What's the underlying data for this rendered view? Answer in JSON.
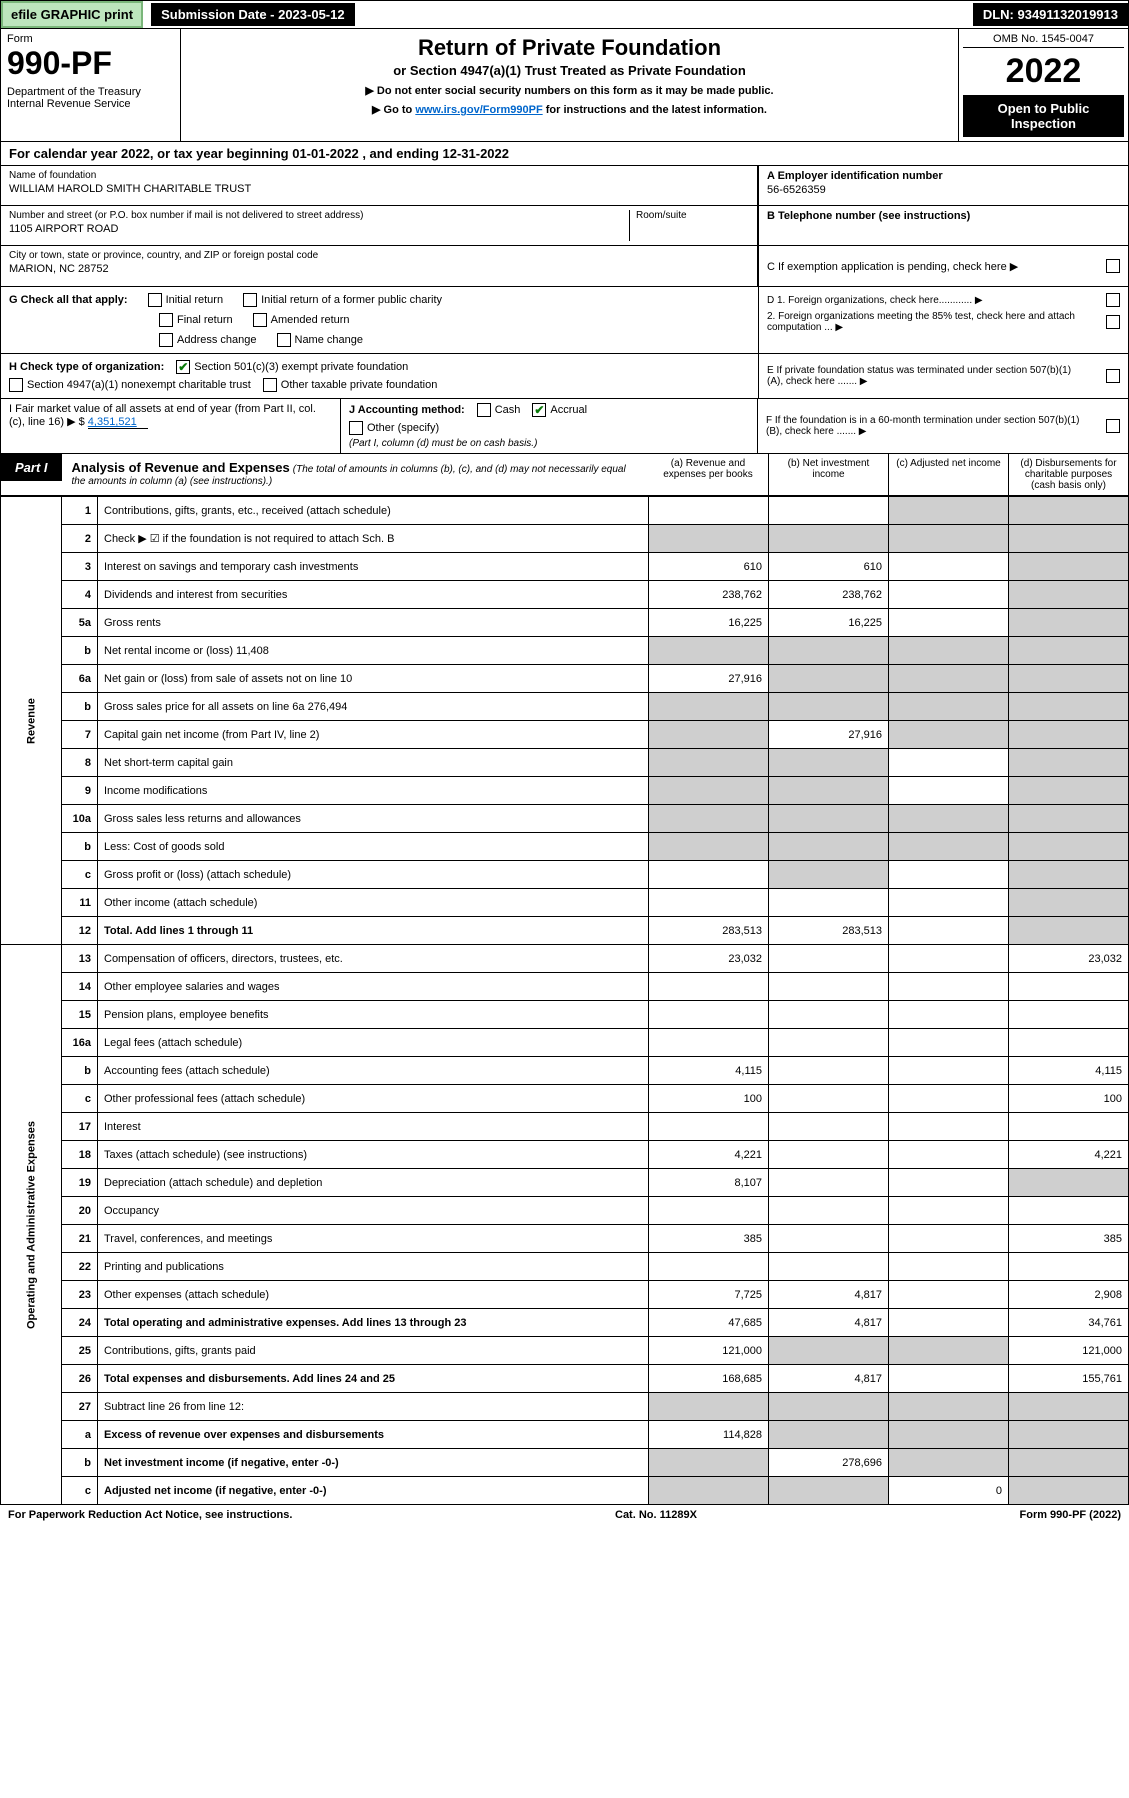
{
  "top": {
    "efile": "efile GRAPHIC print",
    "submission": "Submission Date - 2023-05-12",
    "dln": "DLN: 93491132019913"
  },
  "header": {
    "form_label": "Form",
    "form_num": "990-PF",
    "dept": "Department of the Treasury\nInternal Revenue Service",
    "title": "Return of Private Foundation",
    "subtitle": "or Section 4947(a)(1) Trust Treated as Private Foundation",
    "instr1": "▶ Do not enter social security numbers on this form as it may be made public.",
    "instr2_pre": "▶ Go to ",
    "instr2_link": "www.irs.gov/Form990PF",
    "instr2_post": " for instructions and the latest information.",
    "omb": "OMB No. 1545-0047",
    "year": "2022",
    "open": "Open to Public Inspection"
  },
  "cal_year": "For calendar year 2022, or tax year beginning 01-01-2022                          , and ending 12-31-2022",
  "info": {
    "name_lbl": "Name of foundation",
    "name": "WILLIAM HAROLD SMITH CHARITABLE TRUST",
    "addr_lbl": "Number and street (or P.O. box number if mail is not delivered to street address)",
    "addr": "1105 AIRPORT ROAD",
    "room_lbl": "Room/suite",
    "city_lbl": "City or town, state or province, country, and ZIP or foreign postal code",
    "city": "MARION, NC  28752",
    "ein_lbl": "A Employer identification number",
    "ein": "56-6526359",
    "tel_lbl": "B Telephone number (see instructions)",
    "c_lbl": "C If exemption application is pending, check here ▶",
    "d1": "D 1. Foreign organizations, check here............ ▶",
    "d2": "2. Foreign organizations meeting the 85% test, check here and attach computation ... ▶",
    "e": "E If private foundation status was terminated under section 507(b)(1)(A), check here ....... ▶",
    "f": "F If the foundation is in a 60-month termination under section 507(b)(1)(B), check here ....... ▶"
  },
  "g": {
    "label": "G Check all that apply:",
    "opts": [
      "Initial return",
      "Initial return of a former public charity",
      "Final return",
      "Amended return",
      "Address change",
      "Name change"
    ]
  },
  "h": {
    "label": "H Check type of organization:",
    "opt1": "Section 501(c)(3) exempt private foundation",
    "opt2": "Section 4947(a)(1) nonexempt charitable trust",
    "opt3": "Other taxable private foundation"
  },
  "i": {
    "label": "I Fair market value of all assets at end of year (from Part II, col. (c), line 16) ▶ $",
    "value": "4,351,521"
  },
  "j": {
    "label": "J Accounting method:",
    "cash": "Cash",
    "accrual": "Accrual",
    "other": "Other (specify)",
    "note": "(Part I, column (d) must be on cash basis.)"
  },
  "part1": {
    "label": "Part I",
    "title": "Analysis of Revenue and Expenses",
    "note": "(The total of amounts in columns (b), (c), and (d) may not necessarily equal the amounts in column (a) (see instructions).)",
    "cols": {
      "a": "(a) Revenue and expenses per books",
      "b": "(b) Net investment income",
      "c": "(c) Adjusted net income",
      "d": "(d) Disbursements for charitable purposes (cash basis only)"
    }
  },
  "side_labels": {
    "rev": "Revenue",
    "exp": "Operating and Administrative Expenses"
  },
  "rows": [
    {
      "n": "1",
      "d": "Contributions, gifts, grants, etc., received (attach schedule)",
      "a": "",
      "b": "",
      "c": "grey",
      "dcol": "grey"
    },
    {
      "n": "2",
      "d": "Check ▶ ☑ if the foundation is not required to attach Sch. B",
      "a": "grey",
      "b": "grey",
      "c": "grey",
      "dcol": "grey"
    },
    {
      "n": "3",
      "d": "Interest on savings and temporary cash investments",
      "a": "610",
      "b": "610",
      "c": "",
      "dcol": "grey"
    },
    {
      "n": "4",
      "d": "Dividends and interest from securities",
      "a": "238,762",
      "b": "238,762",
      "c": "",
      "dcol": "grey"
    },
    {
      "n": "5a",
      "d": "Gross rents",
      "a": "16,225",
      "b": "16,225",
      "c": "",
      "dcol": "grey"
    },
    {
      "n": "b",
      "d": "Net rental income or (loss)                           11,408",
      "a": "grey",
      "b": "grey",
      "c": "grey",
      "dcol": "grey"
    },
    {
      "n": "6a",
      "d": "Net gain or (loss) from sale of assets not on line 10",
      "a": "27,916",
      "b": "grey",
      "c": "grey",
      "dcol": "grey"
    },
    {
      "n": "b",
      "d": "Gross sales price for all assets on line 6a           276,494",
      "a": "grey",
      "b": "grey",
      "c": "grey",
      "dcol": "grey"
    },
    {
      "n": "7",
      "d": "Capital gain net income (from Part IV, line 2)",
      "a": "grey",
      "b": "27,916",
      "c": "grey",
      "dcol": "grey"
    },
    {
      "n": "8",
      "d": "Net short-term capital gain",
      "a": "grey",
      "b": "grey",
      "c": "",
      "dcol": "grey"
    },
    {
      "n": "9",
      "d": "Income modifications",
      "a": "grey",
      "b": "grey",
      "c": "",
      "dcol": "grey"
    },
    {
      "n": "10a",
      "d": "Gross sales less returns and allowances",
      "a": "grey",
      "b": "grey",
      "c": "grey",
      "dcol": "grey"
    },
    {
      "n": "b",
      "d": "Less: Cost of goods sold",
      "a": "grey",
      "b": "grey",
      "c": "grey",
      "dcol": "grey"
    },
    {
      "n": "c",
      "d": "Gross profit or (loss) (attach schedule)",
      "a": "",
      "b": "grey",
      "c": "",
      "dcol": "grey"
    },
    {
      "n": "11",
      "d": "Other income (attach schedule)",
      "a": "",
      "b": "",
      "c": "",
      "dcol": "grey"
    },
    {
      "n": "12",
      "d": "Total. Add lines 1 through 11",
      "a": "283,513",
      "b": "283,513",
      "c": "",
      "dcol": "grey",
      "bold": true
    },
    {
      "n": "13",
      "d": "Compensation of officers, directors, trustees, etc.",
      "a": "23,032",
      "b": "",
      "c": "",
      "dcol": "23,032"
    },
    {
      "n": "14",
      "d": "Other employee salaries and wages",
      "a": "",
      "b": "",
      "c": "",
      "dcol": ""
    },
    {
      "n": "15",
      "d": "Pension plans, employee benefits",
      "a": "",
      "b": "",
      "c": "",
      "dcol": ""
    },
    {
      "n": "16a",
      "d": "Legal fees (attach schedule)",
      "a": "",
      "b": "",
      "c": "",
      "dcol": ""
    },
    {
      "n": "b",
      "d": "Accounting fees (attach schedule)",
      "a": "4,115",
      "b": "",
      "c": "",
      "dcol": "4,115"
    },
    {
      "n": "c",
      "d": "Other professional fees (attach schedule)",
      "a": "100",
      "b": "",
      "c": "",
      "dcol": "100"
    },
    {
      "n": "17",
      "d": "Interest",
      "a": "",
      "b": "",
      "c": "",
      "dcol": ""
    },
    {
      "n": "18",
      "d": "Taxes (attach schedule) (see instructions)",
      "a": "4,221",
      "b": "",
      "c": "",
      "dcol": "4,221"
    },
    {
      "n": "19",
      "d": "Depreciation (attach schedule) and depletion",
      "a": "8,107",
      "b": "",
      "c": "",
      "dcol": "grey"
    },
    {
      "n": "20",
      "d": "Occupancy",
      "a": "",
      "b": "",
      "c": "",
      "dcol": ""
    },
    {
      "n": "21",
      "d": "Travel, conferences, and meetings",
      "a": "385",
      "b": "",
      "c": "",
      "dcol": "385"
    },
    {
      "n": "22",
      "d": "Printing and publications",
      "a": "",
      "b": "",
      "c": "",
      "dcol": ""
    },
    {
      "n": "23",
      "d": "Other expenses (attach schedule)",
      "a": "7,725",
      "b": "4,817",
      "c": "",
      "dcol": "2,908"
    },
    {
      "n": "24",
      "d": "Total operating and administrative expenses. Add lines 13 through 23",
      "a": "47,685",
      "b": "4,817",
      "c": "",
      "dcol": "34,761",
      "bold": true
    },
    {
      "n": "25",
      "d": "Contributions, gifts, grants paid",
      "a": "121,000",
      "b": "grey",
      "c": "grey",
      "dcol": "121,000"
    },
    {
      "n": "26",
      "d": "Total expenses and disbursements. Add lines 24 and 25",
      "a": "168,685",
      "b": "4,817",
      "c": "",
      "dcol": "155,761",
      "bold": true
    },
    {
      "n": "27",
      "d": "Subtract line 26 from line 12:",
      "a": "grey",
      "b": "grey",
      "c": "grey",
      "dcol": "grey"
    },
    {
      "n": "a",
      "d": "Excess of revenue over expenses and disbursements",
      "a": "114,828",
      "b": "grey",
      "c": "grey",
      "dcol": "grey",
      "bold": true
    },
    {
      "n": "b",
      "d": "Net investment income (if negative, enter -0-)",
      "a": "grey",
      "b": "278,696",
      "c": "grey",
      "dcol": "grey",
      "bold": true
    },
    {
      "n": "c",
      "d": "Adjusted net income (if negative, enter -0-)",
      "a": "grey",
      "b": "grey",
      "c": "0",
      "dcol": "grey",
      "bold": true
    }
  ],
  "footer": {
    "left": "For Paperwork Reduction Act Notice, see instructions.",
    "mid": "Cat. No. 11289X",
    "right": "Form 990-PF (2022)"
  }
}
